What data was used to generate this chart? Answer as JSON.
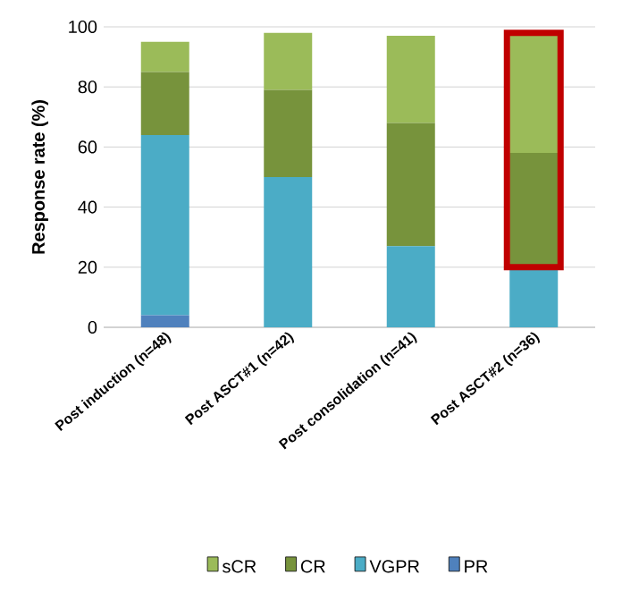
{
  "chart_data": {
    "type": "bar",
    "stacked": true,
    "ylabel": "Response rate (%)",
    "categories": [
      "Post induction (n=48)",
      "Post ASCT#1 (n=42)",
      "Post consolidation (n=41)",
      "Post ASCT#2 (n=36)"
    ],
    "series": [
      {
        "name": "PR",
        "color": "#4f81bd",
        "values": [
          4,
          0,
          0,
          0
        ]
      },
      {
        "name": "VGPR",
        "color": "#4bacc6",
        "values": [
          60,
          50,
          27,
          20
        ]
      },
      {
        "name": "CR",
        "color": "#77933c",
        "values": [
          21,
          29,
          41,
          38
        ]
      },
      {
        "name": "sCR",
        "color": "#9bbb59",
        "values": [
          10,
          19,
          29,
          40
        ]
      }
    ],
    "ylim": [
      0,
      100
    ],
    "yticks": [
      0,
      20,
      40,
      60,
      80,
      100
    ],
    "grid": "y",
    "legend": "bottom"
  }
}
